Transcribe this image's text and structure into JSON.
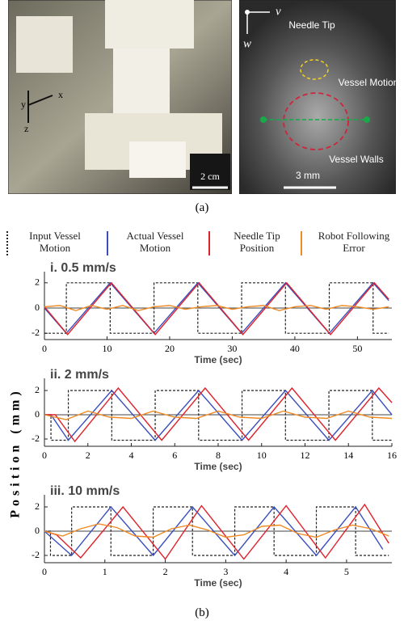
{
  "figure": {
    "caption_a": "(a)",
    "caption_b": "(b)",
    "y_label": "Position (mm)",
    "photo": {
      "axis_x": "x",
      "axis_y": "y",
      "axis_z": "z",
      "scale": "2 cm"
    },
    "ultrasound": {
      "axis_v": "v",
      "axis_w": "w",
      "needle_tip": "Needle Tip",
      "vessel_motion": "Vessel Motion",
      "vessel_walls": "Vessel Walls",
      "scale": "3 mm"
    }
  },
  "chart_data": [
    {
      "type": "line",
      "title": "i.  0.5 mm/s",
      "x_label": "Time (sec)",
      "xlim": [
        0,
        55.5
      ],
      "xticks": [
        0,
        10,
        20,
        30,
        40,
        50
      ],
      "ylim": [
        -2.5,
        2.5
      ],
      "yticks": [
        -2,
        0,
        2
      ],
      "series": [
        {
          "name": "Input Vessel Motion",
          "color": "#222222",
          "dash": true,
          "x": [
            0,
            3.5,
            3.5,
            10.5,
            10.5,
            17.5,
            17.5,
            24.5,
            24.5,
            31.5,
            31.5,
            38.5,
            38.5,
            45.5,
            45.5,
            52.5,
            52.5,
            55
          ],
          "values": [
            -2,
            -2,
            2,
            2,
            -2,
            -2,
            2,
            2,
            -2,
            -2,
            2,
            2,
            -2,
            -2,
            2,
            2,
            -2,
            -2
          ]
        },
        {
          "name": "Actual Vessel Motion",
          "color": "#3a4fbf",
          "x": [
            0,
            3.5,
            10.5,
            17.5,
            24.5,
            31.5,
            38.5,
            45.5,
            52.5,
            55
          ],
          "values": [
            0,
            -2,
            2,
            -2,
            2,
            -2,
            2,
            -2,
            2,
            0.6
          ]
        },
        {
          "name": "Needle Tip Position",
          "color": "#e0202a",
          "x": [
            0,
            3.7,
            10.7,
            17.7,
            24.7,
            31.7,
            38.7,
            45.7,
            52.7,
            55
          ],
          "values": [
            0.1,
            -2.1,
            2,
            -2.1,
            2,
            -2.1,
            2,
            -2.1,
            2,
            0.7
          ]
        },
        {
          "name": "Robot Following Error",
          "color": "#f08a24",
          "x": [
            0,
            2.5,
            5,
            7.5,
            10,
            12.5,
            15,
            17.5,
            20,
            22.5,
            25,
            27.5,
            30,
            32.5,
            35,
            37.5,
            40,
            42.5,
            45,
            47.5,
            50,
            52.5,
            55
          ],
          "values": [
            0.1,
            0.2,
            -0.2,
            0.2,
            -0.1,
            0.2,
            -0.2,
            0.1,
            0.2,
            -0.1,
            0.1,
            0.2,
            -0.1,
            0.1,
            0.2,
            -0.2,
            0.1,
            0.2,
            -0.1,
            0.2,
            0.1,
            -0.1,
            0.1
          ]
        }
      ]
    },
    {
      "type": "line",
      "title": "ii.  2 mm/s",
      "x_label": "Time (sec)",
      "xlim": [
        0,
        16
      ],
      "xticks": [
        0,
        2,
        4,
        6,
        8,
        10,
        12,
        14,
        16
      ],
      "ylim": [
        -2.6,
        2.6
      ],
      "yticks": [
        -2,
        0,
        2
      ],
      "series": [
        {
          "color": "#222222",
          "dash": true,
          "x": [
            0,
            0.3,
            0.3,
            1.1,
            1.1,
            3.1,
            3.1,
            5.1,
            5.1,
            7.1,
            7.1,
            9.1,
            9.1,
            11.1,
            11.1,
            13.1,
            13.1,
            15.1,
            15.1,
            16
          ],
          "values": [
            0,
            0,
            -2.1,
            -2.1,
            2,
            2,
            -2.1,
            -2.1,
            2,
            2,
            -2.1,
            -2.1,
            2,
            2,
            -2.1,
            -2.1,
            2,
            2,
            -2.1,
            -2.1
          ]
        },
        {
          "color": "#3a4fbf",
          "x": [
            0,
            0.3,
            1.1,
            3.1,
            5.1,
            7.1,
            9.1,
            11.1,
            13.1,
            15.1,
            16
          ],
          "values": [
            0,
            0,
            -2.1,
            2,
            -2.1,
            2,
            -2.1,
            2,
            -2.1,
            2,
            0
          ]
        },
        {
          "color": "#e0202a",
          "x": [
            0,
            0.5,
            1.4,
            3.4,
            5.4,
            7.4,
            9.4,
            11.4,
            13.4,
            15.4,
            16
          ],
          "values": [
            0,
            0,
            -2.2,
            2.2,
            -2.1,
            2.2,
            -2.1,
            2.2,
            -2.1,
            2.2,
            1
          ]
        },
        {
          "color": "#f08a24",
          "x": [
            0,
            1,
            2,
            3,
            4,
            5,
            6,
            7,
            8,
            9,
            10,
            11,
            12,
            13,
            14,
            15,
            16
          ],
          "values": [
            0,
            -0.4,
            0.3,
            -0.2,
            -0.3,
            0.3,
            -0.2,
            -0.3,
            0.3,
            -0.2,
            -0.3,
            0.3,
            -0.2,
            -0.3,
            0.3,
            -0.2,
            -0.3
          ]
        }
      ]
    },
    {
      "type": "line",
      "title": "iii.  10 mm/s",
      "x_label": "Time (sec)",
      "xlim": [
        0,
        5.75
      ],
      "xticks": [
        0,
        1,
        2,
        3,
        4,
        5
      ],
      "ylim": [
        -2.6,
        2.6
      ],
      "yticks": [
        -2,
        0,
        2
      ],
      "series": [
        {
          "color": "#222222",
          "dash": true,
          "x": [
            0,
            0.1,
            0.1,
            0.45,
            0.45,
            1.1,
            1.1,
            1.8,
            1.8,
            2.45,
            2.45,
            3.15,
            3.15,
            3.8,
            3.8,
            4.5,
            4.5,
            5.15,
            5.15,
            5.7
          ],
          "values": [
            0,
            0,
            -2,
            -2,
            2,
            2,
            -2,
            -2,
            2,
            2,
            -2,
            -2,
            2,
            2,
            -2,
            -2,
            2,
            2,
            -2,
            -2
          ]
        },
        {
          "color": "#3a4fbf",
          "x": [
            0,
            0.45,
            1.1,
            1.8,
            2.45,
            3.15,
            3.8,
            4.5,
            5.15,
            5.6
          ],
          "values": [
            0,
            -2,
            2,
            -2,
            2,
            -2,
            2,
            -2,
            2,
            -1.5
          ]
        },
        {
          "color": "#e0202a",
          "x": [
            0,
            0.2,
            0.6,
            1.3,
            2,
            2.6,
            3.3,
            4,
            4.65,
            5.3,
            5.7
          ],
          "values": [
            0,
            -0.3,
            -2.2,
            2,
            -2.3,
            2.1,
            -2.3,
            2.1,
            -2.2,
            2.2,
            -1
          ]
        },
        {
          "color": "#f08a24",
          "x": [
            0,
            0.3,
            0.6,
            0.9,
            1.2,
            1.5,
            1.8,
            2.1,
            2.4,
            2.7,
            3,
            3.3,
            3.6,
            3.9,
            4.2,
            4.5,
            4.8,
            5.1,
            5.4,
            5.7
          ],
          "values": [
            0,
            -0.4,
            0.2,
            0.6,
            0.3,
            -0.4,
            -0.5,
            0.2,
            0.5,
            0.1,
            -0.5,
            -0.3,
            0.4,
            0.5,
            -0.2,
            -0.5,
            0.1,
            0.5,
            0.2,
            -0.4
          ]
        }
      ]
    }
  ]
}
